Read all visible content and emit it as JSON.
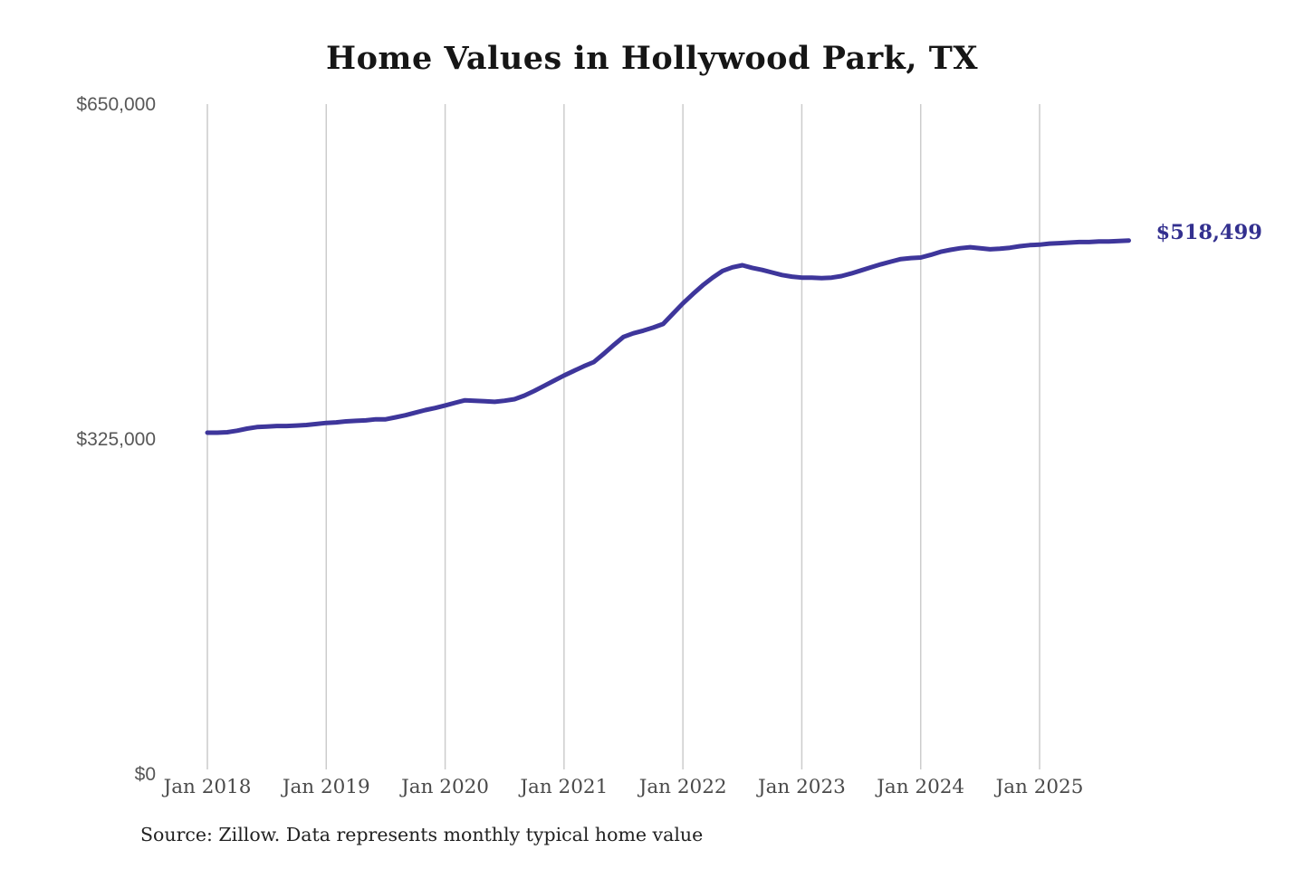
{
  "chart": {
    "title": "Home Values in Hollywood Park, TX",
    "end_label": "$518,499",
    "source_note": "Source: Zillow. Data represents monthly typical home value",
    "colors": {
      "line": "#3e369b",
      "end_label": "#33308f",
      "gridline": "#cccccc",
      "x_tick_text": "#4a4a4a",
      "y_tick_text": "#575757",
      "title_text": "#161616",
      "source_text": "#222222",
      "background": "#ffffff"
    }
  },
  "chart_data": {
    "type": "line",
    "title": "Home Values in Hollywood Park, TX",
    "series_name": "Monthly typical home value (Zillow)",
    "xlabel": "",
    "ylabel": "",
    "ylim": [
      0,
      650000
    ],
    "grid": "vertical-only",
    "legend": "none",
    "y_ticks": [
      {
        "label": "$0",
        "value": 0
      },
      {
        "label": "$325,000",
        "value": 325000
      },
      {
        "label": "$650,000",
        "value": 650000
      }
    ],
    "x_ticks": [
      {
        "label": "Jan 2018",
        "year": 2018
      },
      {
        "label": "Jan 2019",
        "year": 2019
      },
      {
        "label": "Jan 2020",
        "year": 2020
      },
      {
        "label": "Jan 2021",
        "year": 2021
      },
      {
        "label": "Jan 2022",
        "year": 2022
      },
      {
        "label": "Jan 2023",
        "year": 2023
      },
      {
        "label": "Jan 2024",
        "year": 2024
      },
      {
        "label": "Jan 2025",
        "year": 2025
      }
    ],
    "start_date": "2018-01",
    "end_date": "2025-10",
    "frequency": "monthly",
    "latest_value": 518499,
    "values": [
      332000,
      332000,
      332500,
      334000,
      336000,
      337500,
      338000,
      338500,
      338500,
      339000,
      339500,
      340500,
      341500,
      342000,
      343000,
      343500,
      344000,
      345000,
      345000,
      347000,
      349000,
      351500,
      354000,
      356000,
      358500,
      361000,
      363500,
      363000,
      362500,
      362000,
      363000,
      364500,
      368000,
      372500,
      377500,
      382500,
      387500,
      392000,
      396500,
      400500,
      408500,
      417000,
      425000,
      428500,
      431000,
      434000,
      437500,
      447500,
      457500,
      466500,
      475000,
      482500,
      489000,
      492500,
      494500,
      492000,
      490000,
      487500,
      485000,
      483500,
      482500,
      482500,
      482000,
      482500,
      484000,
      486500,
      489500,
      492500,
      495500,
      498000,
      500500,
      501500,
      502000,
      504500,
      507500,
      509500,
      511000,
      512000,
      511000,
      510000,
      510500,
      511500,
      513000,
      514000,
      514500,
      515500,
      516000,
      516500,
      517000,
      517000,
      517500,
      517500,
      518000,
      518499
    ]
  }
}
